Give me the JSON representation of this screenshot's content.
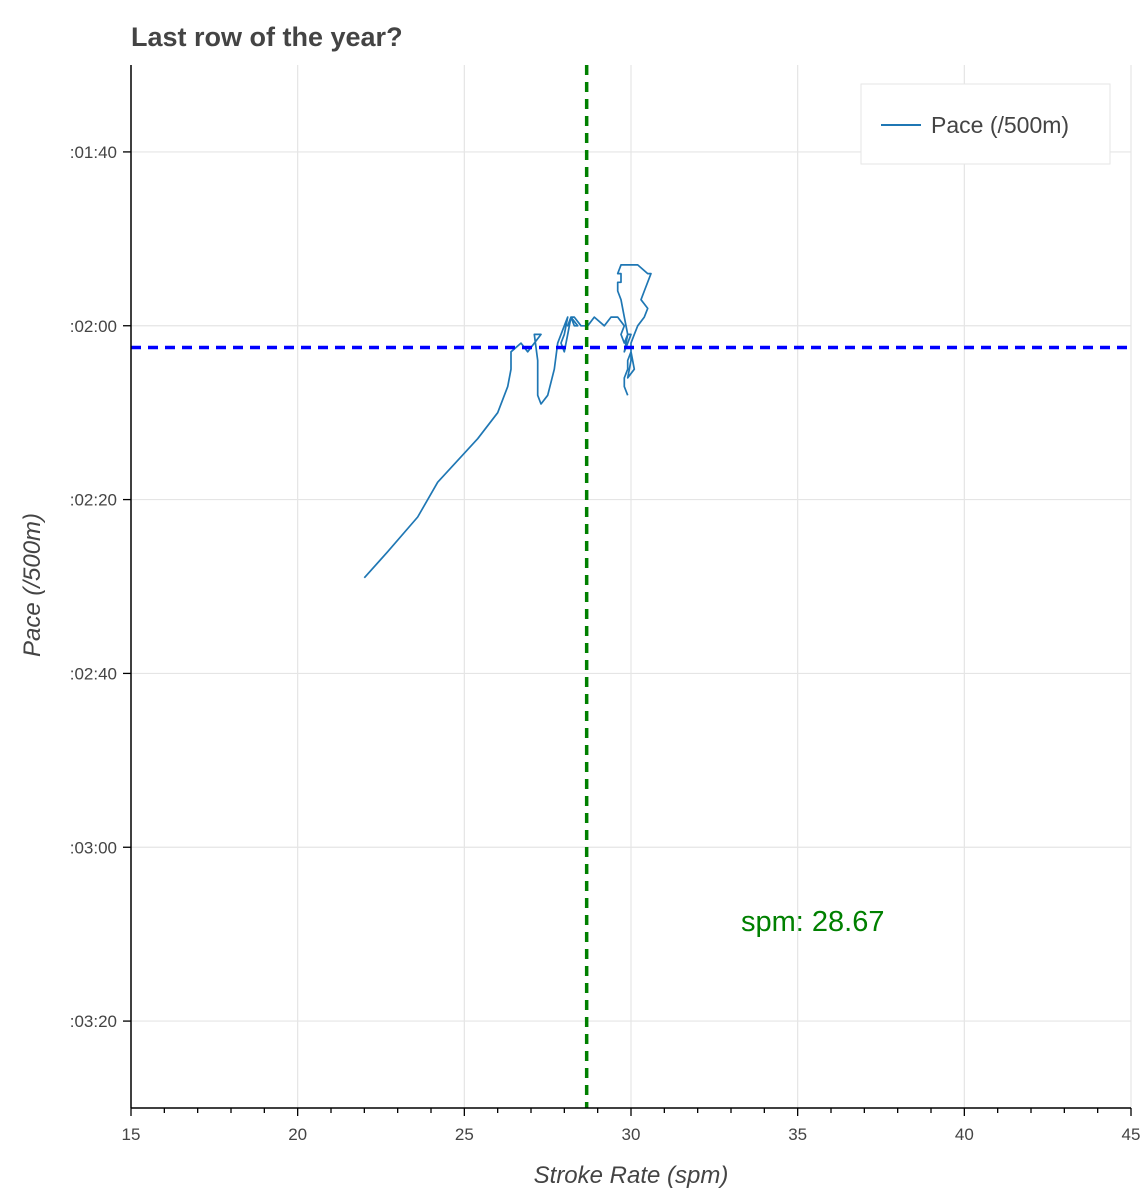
{
  "chart_data": {
    "type": "line",
    "title": "Last row of the year?",
    "xlabel": "Stroke Rate (spm)",
    "ylabel": "Pace (/500m)",
    "xlim": [
      15,
      45
    ],
    "ylim_seconds": [
      90,
      210
    ],
    "y_inverted": true,
    "x_ticks": [
      15,
      20,
      25,
      30,
      35,
      40,
      45
    ],
    "x_tick_labels": [
      "15",
      "20",
      "25",
      "30",
      "35",
      "40",
      "45"
    ],
    "y_ticks": [
      100,
      120,
      140,
      160,
      180,
      200
    ],
    "y_tick_labels": [
      ":01:40",
      ":02:00",
      ":02:20",
      ":02:40",
      ":03:00",
      ":03:20"
    ],
    "grid": true,
    "legend": {
      "placement": "top-right",
      "entries": [
        "Pace (/500m)"
      ]
    },
    "series": [
      {
        "name": "Pace (/500m)",
        "color": "#1f77b4",
        "x": [
          22.0,
          22.7,
          23.6,
          24.2,
          25.4,
          26.0,
          26.3,
          26.4,
          26.4,
          26.7,
          26.9,
          27.3,
          27.1,
          27.2,
          27.2,
          27.3,
          27.5,
          27.7,
          27.8,
          28.0,
          28.1,
          28.0,
          27.9,
          28.0,
          28.1,
          28.2,
          28.4,
          28.3,
          28.2,
          28.1,
          28.2,
          28.3,
          28.5,
          28.7,
          28.9,
          29.2,
          29.4,
          29.6,
          29.8,
          29.7,
          29.8,
          29.9,
          30.0,
          29.9,
          29.8,
          29.9,
          29.8,
          29.7,
          29.6,
          29.6,
          29.7,
          29.7,
          29.6,
          29.7,
          29.8,
          30.2,
          30.5,
          30.6,
          30.4,
          30.3,
          30.5,
          30.4,
          30.2,
          30.1,
          30.0,
          30.0,
          29.9,
          30.1,
          30.0,
          29.9,
          29.9,
          29.8,
          29.8,
          29.9
        ]
      }
    ],
    "pace_values_seconds": [
      149,
      146,
      142,
      138,
      133,
      130,
      127,
      125,
      123,
      122,
      123,
      121,
      121,
      124,
      128,
      129,
      128,
      125,
      122,
      120,
      119,
      121,
      122,
      123,
      121,
      119,
      120,
      120,
      119,
      120,
      119,
      119,
      120,
      120,
      119,
      120,
      119,
      119,
      120,
      121,
      122,
      121,
      121,
      122,
      123,
      121,
      119,
      117,
      116,
      115,
      115,
      114,
      114,
      113,
      113,
      113,
      114,
      114,
      116,
      117,
      118,
      119,
      120,
      121,
      122,
      124,
      126,
      125,
      123,
      124,
      125,
      126,
      127,
      128
    ],
    "reference_lines": [
      {
        "orientation": "vertical",
        "x": 28.67,
        "color": "#008000",
        "style": "dashed"
      },
      {
        "orientation": "horizontal",
        "y_seconds": 122.5,
        "color": "#0000ff",
        "style": "dashed"
      }
    ],
    "annotations": [
      {
        "text": "spm: 28.67",
        "x": 33.3,
        "y_seconds": 188.5,
        "color": "#008000"
      }
    ]
  }
}
